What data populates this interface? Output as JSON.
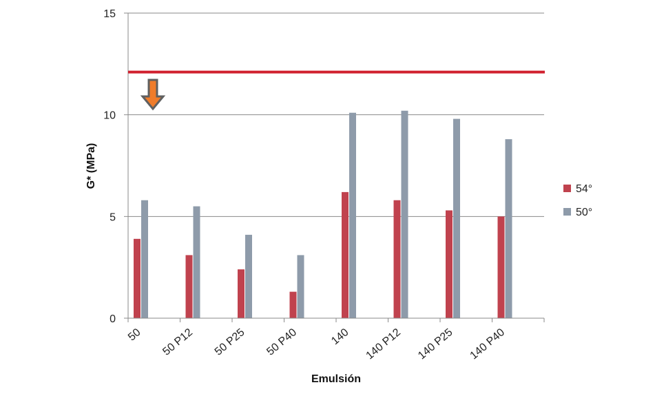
{
  "chart_data": {
    "type": "bar",
    "xlabel": "Emulsión",
    "ylabel": "G* (MPa)",
    "ylim": [
      0,
      15
    ],
    "yticks": [
      0,
      5,
      10,
      15
    ],
    "grid": true,
    "legend_position": "right",
    "categories": [
      "50",
      "50 P12",
      "50 P25",
      "50 P40",
      "140",
      "140 P12",
      "140 P25",
      "140 P40"
    ],
    "series": [
      {
        "name": "54°",
        "color": "#C0424E",
        "values": [
          3.9,
          3.1,
          2.4,
          1.3,
          6.2,
          5.8,
          5.3,
          5.0
        ]
      },
      {
        "name": "50°",
        "color": "#8E9BAA",
        "values": [
          5.8,
          5.5,
          4.1,
          3.1,
          10.1,
          10.2,
          9.8,
          8.8
        ]
      }
    ],
    "reference_line": {
      "value": 12.1,
      "color": "#D0202E"
    },
    "arrow": {
      "color": "#F07C2A",
      "outline": "#606060"
    }
  }
}
